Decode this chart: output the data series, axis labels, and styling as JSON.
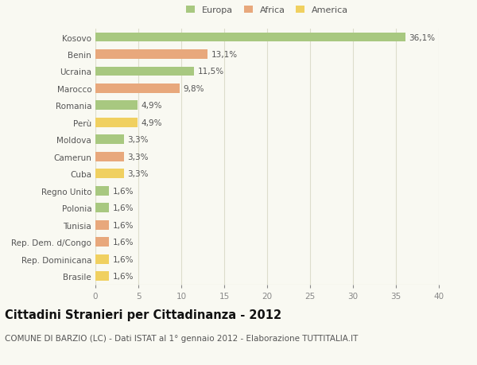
{
  "categories": [
    "Kosovo",
    "Benin",
    "Ucraina",
    "Marocco",
    "Romania",
    "Perù",
    "Moldova",
    "Camerun",
    "Cuba",
    "Regno Unito",
    "Polonia",
    "Tunisia",
    "Rep. Dem. d/Congo",
    "Rep. Dominicana",
    "Brasile"
  ],
  "values": [
    36.1,
    13.1,
    11.5,
    9.8,
    4.9,
    4.9,
    3.3,
    3.3,
    3.3,
    1.6,
    1.6,
    1.6,
    1.6,
    1.6,
    1.6
  ],
  "colors": [
    "#a8c880",
    "#e8a87c",
    "#a8c880",
    "#e8a87c",
    "#a8c880",
    "#f0d060",
    "#a8c880",
    "#e8a87c",
    "#f0d060",
    "#a8c880",
    "#a8c880",
    "#e8a87c",
    "#e8a87c",
    "#f0d060",
    "#f0d060"
  ],
  "labels": [
    "36,1%",
    "13,1%",
    "11,5%",
    "9,8%",
    "4,9%",
    "4,9%",
    "3,3%",
    "3,3%",
    "3,3%",
    "1,6%",
    "1,6%",
    "1,6%",
    "1,6%",
    "1,6%",
    "1,6%"
  ],
  "legend_labels": [
    "Europa",
    "Africa",
    "America"
  ],
  "legend_colors": [
    "#a8c880",
    "#e8a87c",
    "#f0d060"
  ],
  "title": "Cittadini Stranieri per Cittadinanza - 2012",
  "subtitle": "COMUNE DI BARZIO (LC) - Dati ISTAT al 1° gennaio 2012 - Elaborazione TUTTITALIA.IT",
  "xlim": [
    0,
    40
  ],
  "xticks": [
    0,
    5,
    10,
    15,
    20,
    25,
    30,
    35,
    40
  ],
  "background_color": "#f9f9f2",
  "grid_color": "#ddddcc",
  "bar_height": 0.55,
  "label_fontsize": 7.5,
  "tick_fontsize": 7.5,
  "title_fontsize": 10.5,
  "subtitle_fontsize": 7.5
}
